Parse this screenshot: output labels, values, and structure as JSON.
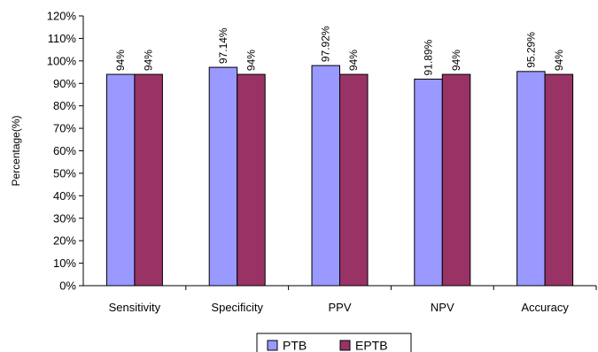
{
  "chart_data": {
    "type": "bar",
    "ylabel": "Percentage(%)",
    "xlabel": "",
    "ylim": [
      0,
      120
    ],
    "ytick_step": 10,
    "ytick_suffix": "%",
    "categories": [
      "Sensitivity",
      "Specificity",
      "PPV",
      "NPV",
      "Accuracy"
    ],
    "series": [
      {
        "name": "PTB",
        "color": "#9999ff",
        "values": [
          94,
          97.14,
          97.92,
          91.89,
          95.29
        ],
        "labels": [
          "94%",
          "97.14%",
          "97.92%",
          "91.89%",
          "95.29%"
        ]
      },
      {
        "name": "EPTB",
        "color": "#993366",
        "values": [
          94,
          94,
          94,
          94,
          94
        ],
        "labels": [
          "94%",
          "94%",
          "94%",
          "94%",
          "94%"
        ]
      }
    ],
    "legend_position": "bottom",
    "grid": false
  }
}
